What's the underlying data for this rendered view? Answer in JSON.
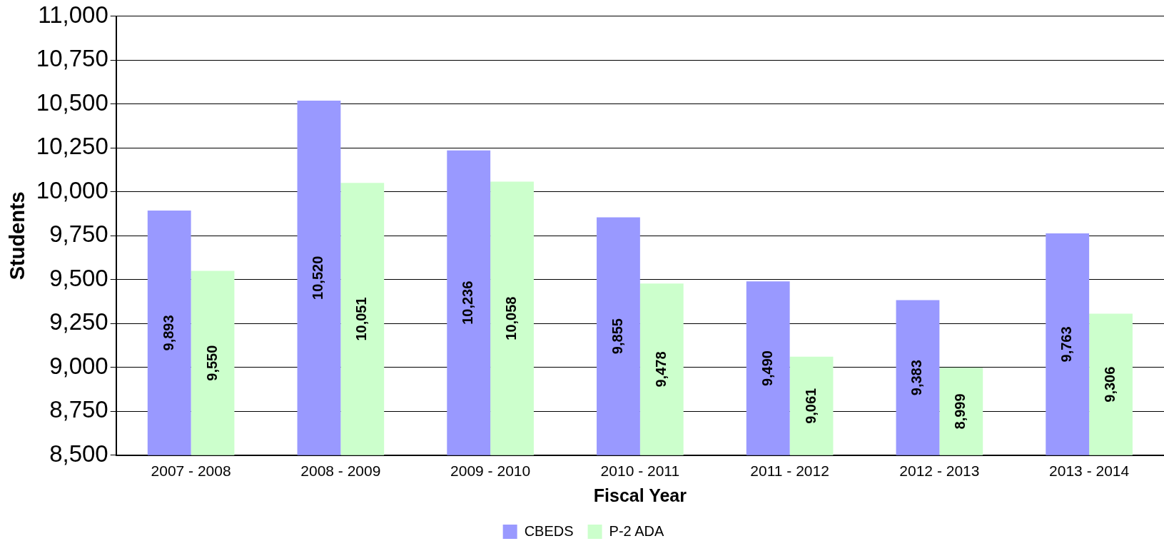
{
  "chart_data": {
    "type": "bar",
    "categories": [
      "2007 - 2008",
      "2008 - 2009",
      "2009 - 2010",
      "2010 - 2011",
      "2011 - 2012",
      "2012 - 2013",
      "2013 - 2014"
    ],
    "series": [
      {
        "name": "CBEDS",
        "color": "#9999ff",
        "values": [
          9893,
          10520,
          10236,
          9855,
          9490,
          9383,
          9763
        ],
        "value_labels": [
          "9,893",
          "10,520",
          "10,236",
          "9,855",
          "9,490",
          "9,383",
          "9,763"
        ]
      },
      {
        "name": "P-2 ADA",
        "color": "#ccffcc",
        "values": [
          9550,
          10051,
          10058,
          9478,
          9061,
          8999,
          9306
        ],
        "value_labels": [
          "9,550",
          "10,051",
          "10,058",
          "9,478",
          "9,061",
          "8,999",
          "9,306"
        ]
      }
    ],
    "xlabel": "Fiscal Year",
    "ylabel": "Students",
    "ylim": [
      8500,
      11000
    ],
    "yticks": [
      {
        "value": 8500,
        "label": "8,500"
      },
      {
        "value": 8750,
        "label": "8,750"
      },
      {
        "value": 9000,
        "label": "9,000"
      },
      {
        "value": 9250,
        "label": "9,250"
      },
      {
        "value": 9500,
        "label": "9,500"
      },
      {
        "value": 9750,
        "label": "9,750"
      },
      {
        "value": 10000,
        "label": "10,000"
      },
      {
        "value": 10250,
        "label": "10,250"
      },
      {
        "value": 10500,
        "label": "10,500"
      },
      {
        "value": 10750,
        "label": "10,750"
      },
      {
        "value": 11000,
        "label": "11,000"
      }
    ],
    "grid": "y",
    "legend": "bottom"
  }
}
